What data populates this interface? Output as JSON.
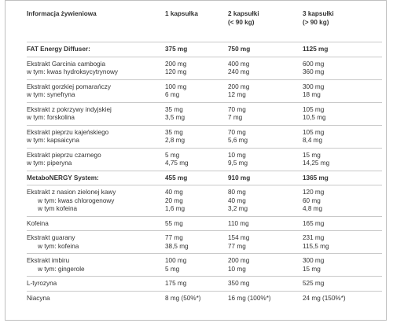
{
  "headers": {
    "col1": "Informacja żywieniowa",
    "col2": "1 kapsułka",
    "col3_line1": "2 kapsułki",
    "col3_line2": "(< 90 kg)",
    "col4_line1": "3 kapsułki",
    "col4_line2": "(> 90 kg)"
  },
  "rows": [
    {
      "lines": [
        "FAT Energy Diffuser:"
      ],
      "c1": [
        "375 mg"
      ],
      "c2": [
        "750  mg"
      ],
      "c3": [
        "1125 mg"
      ],
      "section": true
    },
    {
      "lines": [
        "Ekstrakt Garcinia cambogia",
        "w tym: kwas hydroksycytrynowy"
      ],
      "c1": [
        "200 mg",
        "120 mg"
      ],
      "c2": [
        "400 mg",
        "240 mg"
      ],
      "c3": [
        "600 mg",
        "360 mg"
      ]
    },
    {
      "lines": [
        "Ekstrakt gorzkiej pomarańczy",
        "w tym: synefryna"
      ],
      "c1": [
        "100 mg",
        "6 mg"
      ],
      "c2": [
        "200 mg",
        "12 mg"
      ],
      "c3": [
        "300 mg",
        "18 mg"
      ]
    },
    {
      "lines": [
        "Ekstrakt z pokrzywy indyjskiej",
        "w tym: forskolina"
      ],
      "c1": [
        "35 mg",
        "3,5 mg"
      ],
      "c2": [
        "70 mg",
        "7 mg"
      ],
      "c3": [
        "105 mg",
        "10,5 mg"
      ]
    },
    {
      "lines": [
        "Ekstrakt pieprzu kajeńskiego",
        "w tym: kapsaicyna"
      ],
      "c1": [
        "35 mg",
        "2,8 mg"
      ],
      "c2": [
        "70 mg",
        "5,6 mg"
      ],
      "c3": [
        "105 mg",
        "8,4 mg"
      ]
    },
    {
      "lines": [
        "Ekstrakt pieprzu czarnego",
        "w tym: piperyna"
      ],
      "c1": [
        "5 mg",
        "4,75 mg"
      ],
      "c2": [
        "10 mg",
        "9,5 mg"
      ],
      "c3": [
        "15 mg",
        "14,25 mg"
      ]
    },
    {
      "lines": [
        "MetaboNERGY System:"
      ],
      "c1": [
        "455 mg"
      ],
      "c2": [
        "910 mg"
      ],
      "c3": [
        "1365 mg"
      ],
      "section": true
    },
    {
      "lines": [
        "Ekstrakt z nasion zielonej kawy",
        "w tym: kwas chlorogenowy",
        "w tym kofeina"
      ],
      "indent": [
        false,
        true,
        true
      ],
      "c1": [
        "40 mg",
        "20 mg",
        "1,6 mg"
      ],
      "c2": [
        "80 mg",
        "40 mg",
        "3,2 mg"
      ],
      "c3": [
        "120 mg",
        "60 mg",
        "4,8 mg"
      ]
    },
    {
      "lines": [
        "Kofeina"
      ],
      "c1": [
        "55 mg"
      ],
      "c2": [
        "110 mg"
      ],
      "c3": [
        "165 mg"
      ]
    },
    {
      "lines": [
        "Ekstrakt guarany",
        "w tym: kofeina"
      ],
      "indent": [
        false,
        true
      ],
      "c1": [
        "77 mg",
        "38,5 mg"
      ],
      "c2": [
        "154 mg",
        "77 mg"
      ],
      "c3": [
        "231 mg",
        "115,5 mg"
      ]
    },
    {
      "lines": [
        "Ekstrakt imbiru",
        "w tym: gingerole"
      ],
      "indent": [
        false,
        true
      ],
      "c1": [
        "100 mg",
        "5 mg"
      ],
      "c2": [
        "200 mg",
        "10 mg"
      ],
      "c3": [
        "300 mg",
        "15 mg"
      ]
    },
    {
      "lines": [
        "L-tyrozyna"
      ],
      "c1": [
        "175 mg"
      ],
      "c2": [
        "350 mg"
      ],
      "c3": [
        "525 mg"
      ]
    },
    {
      "lines": [
        "Niacyna"
      ],
      "c1": [
        "8 mg (50%*)"
      ],
      "c2": [
        "16 mg (100%*)"
      ],
      "c3": [
        "24 mg (150%*)"
      ]
    }
  ]
}
